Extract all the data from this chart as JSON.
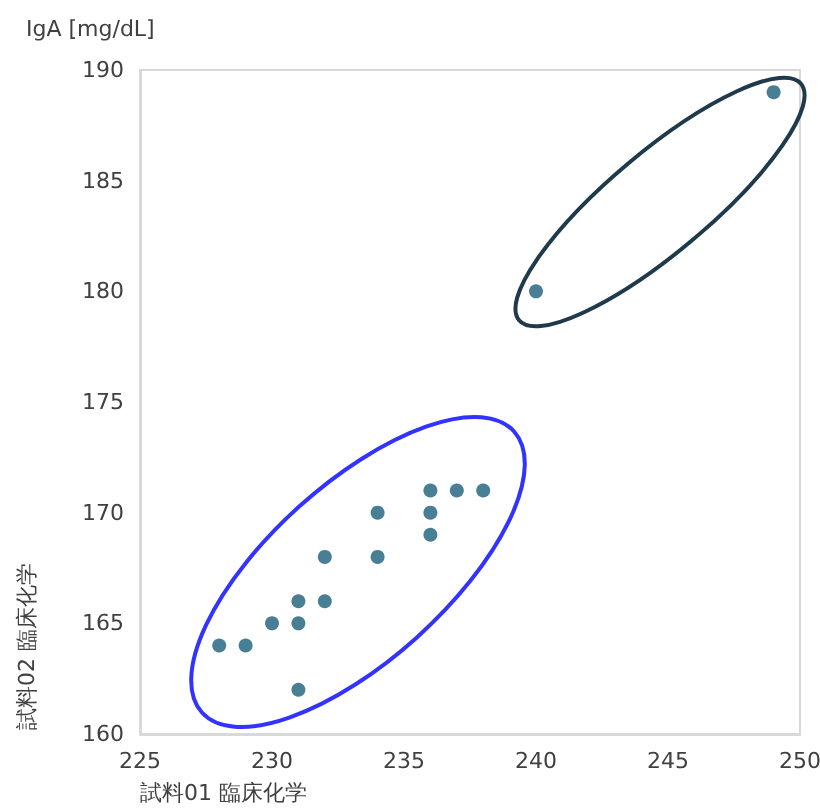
{
  "chart_data": {
    "type": "scatter",
    "title": "IgA [mg/dL]",
    "xlabel": "試料01 臨床化学",
    "ylabel": "試料02 臨床化学",
    "x": [
      228,
      229,
      230,
      231,
      231,
      231,
      232,
      232,
      234,
      234,
      236,
      236,
      236,
      237,
      238,
      240,
      249
    ],
    "values": [
      164,
      164,
      165,
      166,
      165,
      162,
      166,
      168,
      170,
      168,
      171,
      170,
      169,
      171,
      171,
      180,
      189
    ],
    "color": "#1a5f7a",
    "marker": "circle",
    "grid": false,
    "xlim": [
      225,
      250
    ],
    "xticks": [
      225,
      230,
      235,
      240,
      245,
      250
    ],
    "ylim": [
      160,
      190
    ],
    "yticks": [
      160,
      165,
      170,
      175,
      180,
      185,
      190
    ]
  }
}
